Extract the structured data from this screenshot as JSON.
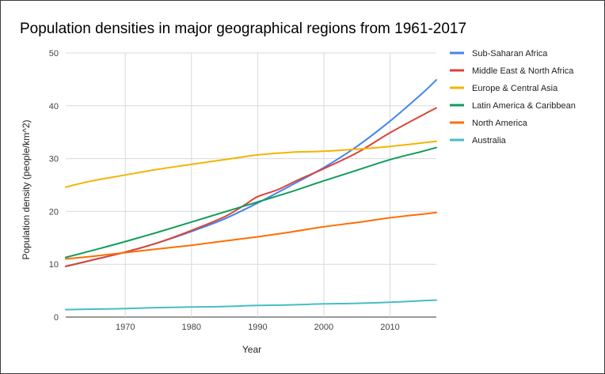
{
  "chart_data": {
    "type": "line",
    "title": "Population densities in major geographical regions from 1961-2017",
    "xlabel": "Year",
    "ylabel": "Population density (people/km^2)",
    "xlim": [
      1961,
      2017
    ],
    "ylim": [
      0,
      50
    ],
    "xticks": [
      1970,
      1980,
      1990,
      2000,
      2010
    ],
    "yticks": [
      0,
      10,
      20,
      30,
      40,
      50
    ],
    "grid": true,
    "legend_position": "right",
    "series": [
      {
        "name": "Sub-Saharan Africa",
        "color": "#4285f4",
        "points": [
          [
            1961,
            9.6
          ],
          [
            1965,
            10.8
          ],
          [
            1970,
            12.3
          ],
          [
            1975,
            14.1
          ],
          [
            1980,
            16.2
          ],
          [
            1985,
            18.6
          ],
          [
            1990,
            21.6
          ],
          [
            1995,
            24.9
          ],
          [
            2000,
            28.3
          ],
          [
            2005,
            32.3
          ],
          [
            2010,
            37.1
          ],
          [
            2015,
            42.5
          ],
          [
            2017,
            44.9
          ]
        ]
      },
      {
        "name": "Middle East & North Africa",
        "color": "#db4437",
        "points": [
          [
            1961,
            9.6
          ],
          [
            1965,
            10.8
          ],
          [
            1970,
            12.3
          ],
          [
            1975,
            14.1
          ],
          [
            1980,
            16.4
          ],
          [
            1985,
            19.0
          ],
          [
            1988,
            21.2
          ],
          [
            1990,
            22.8
          ],
          [
            1993,
            24.1
          ],
          [
            1996,
            25.9
          ],
          [
            2000,
            28.1
          ],
          [
            2005,
            31.1
          ],
          [
            2010,
            34.9
          ],
          [
            2015,
            38.3
          ],
          [
            2017,
            39.6
          ]
        ]
      },
      {
        "name": "Europe & Central Asia",
        "color": "#f4b400",
        "points": [
          [
            1961,
            24.6
          ],
          [
            1965,
            25.8
          ],
          [
            1970,
            26.9
          ],
          [
            1975,
            28.0
          ],
          [
            1980,
            28.9
          ],
          [
            1985,
            29.8
          ],
          [
            1990,
            30.7
          ],
          [
            1995,
            31.2
          ],
          [
            2000,
            31.4
          ],
          [
            2005,
            31.8
          ],
          [
            2010,
            32.3
          ],
          [
            2015,
            33.0
          ],
          [
            2017,
            33.3
          ]
        ]
      },
      {
        "name": "Latin America & Caribbean",
        "color": "#0f9d58",
        "points": [
          [
            1961,
            11.3
          ],
          [
            1965,
            12.6
          ],
          [
            1970,
            14.3
          ],
          [
            1975,
            16.1
          ],
          [
            1980,
            18.0
          ],
          [
            1985,
            19.9
          ],
          [
            1990,
            21.8
          ],
          [
            1995,
            23.7
          ],
          [
            2000,
            25.8
          ],
          [
            2005,
            27.8
          ],
          [
            2010,
            29.8
          ],
          [
            2015,
            31.4
          ],
          [
            2017,
            32.1
          ]
        ]
      },
      {
        "name": "North America",
        "color": "#ff6d01",
        "points": [
          [
            1961,
            11.0
          ],
          [
            1965,
            11.5
          ],
          [
            1970,
            12.2
          ],
          [
            1975,
            12.9
          ],
          [
            1980,
            13.6
          ],
          [
            1985,
            14.4
          ],
          [
            1990,
            15.2
          ],
          [
            1995,
            16.1
          ],
          [
            2000,
            17.1
          ],
          [
            2005,
            17.9
          ],
          [
            2010,
            18.8
          ],
          [
            2015,
            19.5
          ],
          [
            2017,
            19.8
          ]
        ]
      },
      {
        "name": "Australia",
        "color": "#46bdc6",
        "points": [
          [
            1961,
            1.4
          ],
          [
            1965,
            1.5
          ],
          [
            1970,
            1.6
          ],
          [
            1975,
            1.8
          ],
          [
            1980,
            1.9
          ],
          [
            1985,
            2.0
          ],
          [
            1990,
            2.2
          ],
          [
            1995,
            2.3
          ],
          [
            2000,
            2.5
          ],
          [
            2005,
            2.6
          ],
          [
            2010,
            2.8
          ],
          [
            2015,
            3.1
          ],
          [
            2017,
            3.2
          ]
        ]
      }
    ]
  }
}
